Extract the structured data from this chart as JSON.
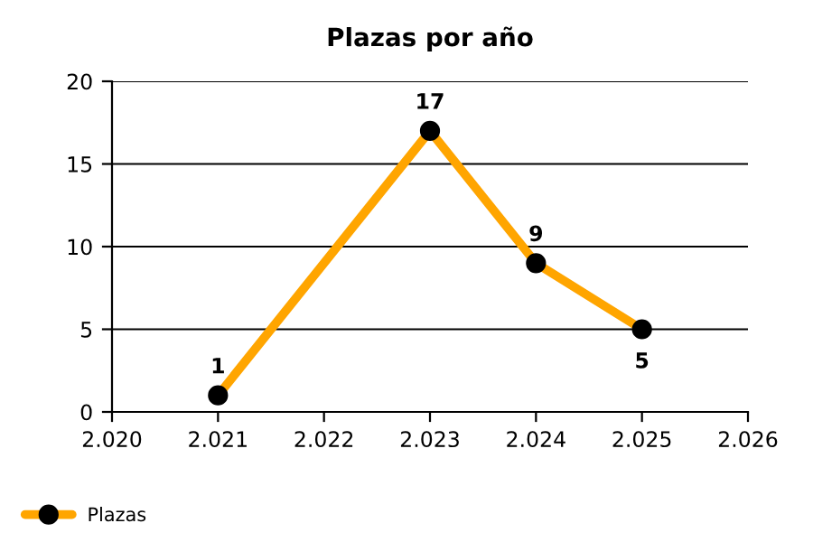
{
  "chart_data": {
    "type": "line",
    "title": "Plazas por año",
    "x": [
      2021,
      2023,
      2024,
      2025
    ],
    "series": [
      {
        "name": "Plazas",
        "color": "#ffa500",
        "values": [
          1,
          17,
          9,
          5
        ]
      }
    ],
    "xlim": [
      2020,
      2026
    ],
    "xticks": [
      {
        "value": 2020,
        "label": "2.020"
      },
      {
        "value": 2021,
        "label": "2.021"
      },
      {
        "value": 2022,
        "label": "2.022"
      },
      {
        "value": 2023,
        "label": "2.023"
      },
      {
        "value": 2024,
        "label": "2.024"
      },
      {
        "value": 2025,
        "label": "2.025"
      },
      {
        "value": 2026,
        "label": "2.026"
      }
    ],
    "ylim": [
      0,
      20
    ],
    "yticks": [
      0,
      5,
      10,
      15,
      20
    ],
    "grid": "y",
    "legend": "bottom left",
    "marker": "circle",
    "line_style": "solid",
    "data_labels": true
  }
}
